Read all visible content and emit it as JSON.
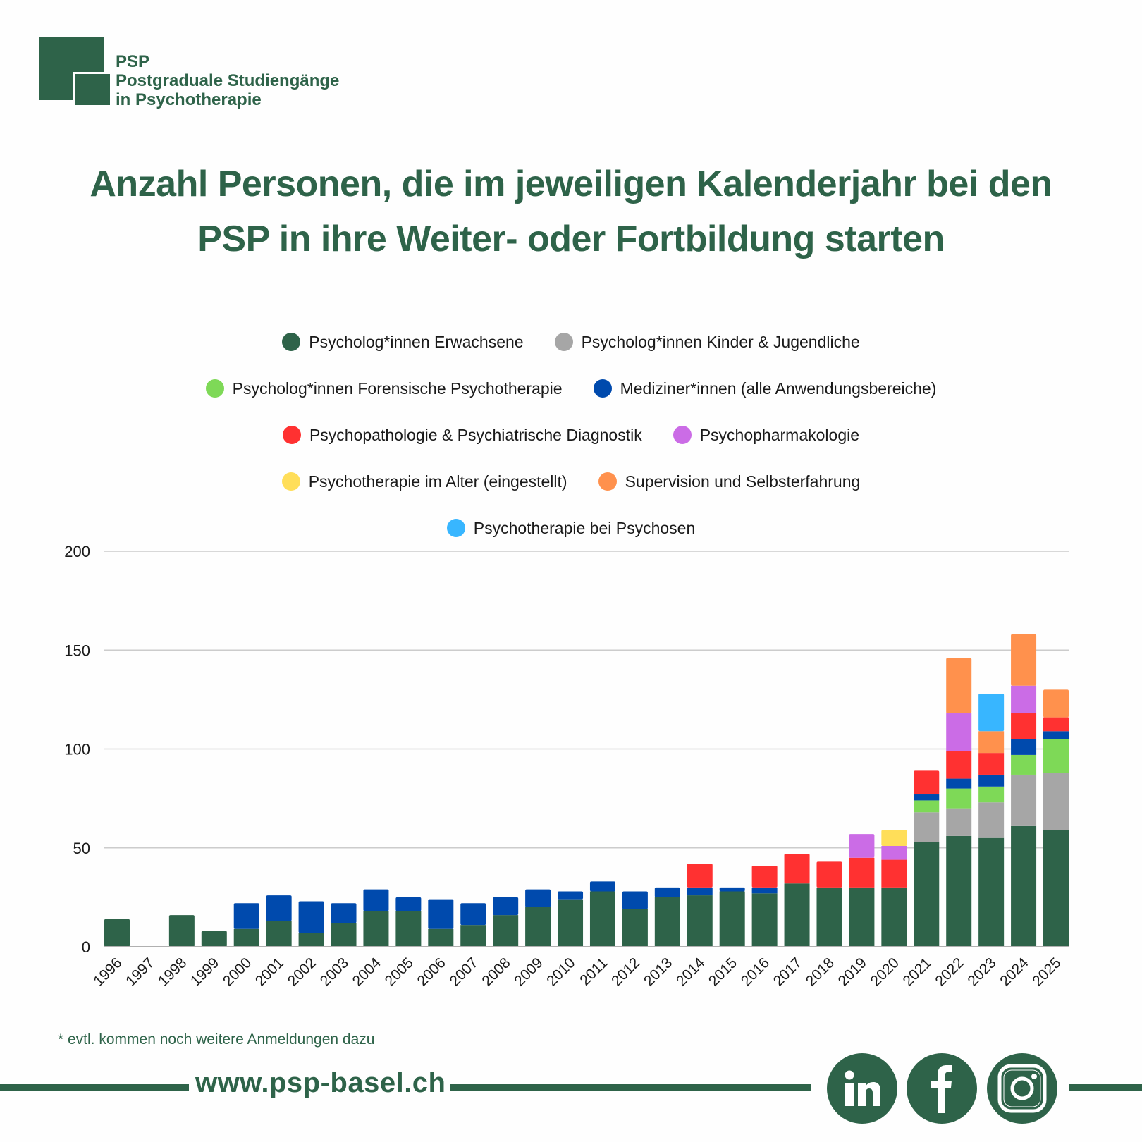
{
  "logo": {
    "line1": "PSP",
    "line2": "Postgraduale Studiengänge",
    "line3": "in Psychotherapie"
  },
  "title": {
    "line1": "Anzahl Personen, die im jeweiligen Kalenderjahr bei den",
    "line2": "PSP in ihre Weiter- oder Fortbildung starten"
  },
  "footnote": "* evtl. kommen noch weitere Anmeldungen dazu",
  "footer": {
    "url": "www.psp-basel.ch",
    "social": [
      {
        "name": "linkedin",
        "icon": "linkedin-icon"
      },
      {
        "name": "facebook",
        "icon": "facebook-icon"
      },
      {
        "name": "instagram",
        "icon": "instagram-icon"
      }
    ]
  },
  "colors": {
    "brand": "#2e6349",
    "grid": "#cccccc"
  },
  "chart_data": {
    "type": "bar",
    "stacked": true,
    "title": "Anzahl Personen, die im jeweiligen Kalenderjahr bei den PSP in ihre Weiter- oder Fortbildung starten",
    "xlabel": "",
    "ylabel": "",
    "ylim": [
      0,
      200
    ],
    "yticks": [
      0,
      50,
      100,
      150,
      200
    ],
    "grid": true,
    "legend_position": "top-center",
    "categories": [
      "1996",
      "1997",
      "1998",
      "1999",
      "2000",
      "2001",
      "2002",
      "2003",
      "2004",
      "2005",
      "2006",
      "2007",
      "2008",
      "2009",
      "2010",
      "2011",
      "2012",
      "2013",
      "2014",
      "2015",
      "2016",
      "2017",
      "2018",
      "2019",
      "2020",
      "2021",
      "2022",
      "2023",
      "2024",
      "2025"
    ],
    "series": [
      {
        "name": "Psycholog*innen Erwachsene",
        "color": "#2e6349",
        "values": [
          14,
          0,
          16,
          8,
          9,
          13,
          7,
          12,
          18,
          18,
          9,
          11,
          16,
          20,
          24,
          28,
          19,
          25,
          26,
          28,
          27,
          32,
          30,
          30,
          30,
          53,
          56,
          55,
          61,
          59
        ]
      },
      {
        "name": "Psycholog*innen Kinder & Jugendliche",
        "color": "#a6a6a6",
        "values": [
          0,
          0,
          0,
          0,
          0,
          0,
          0,
          0,
          0,
          0,
          0,
          0,
          0,
          0,
          0,
          0,
          0,
          0,
          0,
          0,
          0,
          0,
          0,
          0,
          0,
          15,
          14,
          18,
          26,
          29
        ]
      },
      {
        "name": "Psycholog*innen Forensische Psychotherapie",
        "color": "#7ed957",
        "values": [
          0,
          0,
          0,
          0,
          0,
          0,
          0,
          0,
          0,
          0,
          0,
          0,
          0,
          0,
          0,
          0,
          0,
          0,
          0,
          0,
          0,
          0,
          0,
          0,
          0,
          6,
          10,
          8,
          10,
          17
        ]
      },
      {
        "name": "Mediziner*innen (alle Anwendungsbereiche)",
        "color": "#004aad",
        "values": [
          0,
          0,
          0,
          0,
          13,
          13,
          16,
          10,
          11,
          7,
          15,
          11,
          9,
          9,
          4,
          5,
          9,
          5,
          4,
          2,
          3,
          0,
          0,
          0,
          0,
          3,
          5,
          6,
          8,
          4
        ]
      },
      {
        "name": "Psychopathologie & Psychiatrische Diagnostik",
        "color": "#ff3131",
        "values": [
          0,
          0,
          0,
          0,
          0,
          0,
          0,
          0,
          0,
          0,
          0,
          0,
          0,
          0,
          0,
          0,
          0,
          0,
          12,
          0,
          11,
          15,
          13,
          15,
          14,
          12,
          14,
          11,
          13,
          7
        ]
      },
      {
        "name": "Psychopharmakologie",
        "color": "#cb6ce6",
        "values": [
          0,
          0,
          0,
          0,
          0,
          0,
          0,
          0,
          0,
          0,
          0,
          0,
          0,
          0,
          0,
          0,
          0,
          0,
          0,
          0,
          0,
          0,
          0,
          12,
          7,
          0,
          19,
          0,
          14,
          0
        ]
      },
      {
        "name": "Psychotherapie im Alter (eingestellt)",
        "color": "#ffde59",
        "values": [
          0,
          0,
          0,
          0,
          0,
          0,
          0,
          0,
          0,
          0,
          0,
          0,
          0,
          0,
          0,
          0,
          0,
          0,
          0,
          0,
          0,
          0,
          0,
          0,
          8,
          0,
          0,
          0,
          0,
          0
        ]
      },
      {
        "name": "Supervision und Selbsterfahrung",
        "color": "#ff914d",
        "values": [
          0,
          0,
          0,
          0,
          0,
          0,
          0,
          0,
          0,
          0,
          0,
          0,
          0,
          0,
          0,
          0,
          0,
          0,
          0,
          0,
          0,
          0,
          0,
          0,
          0,
          0,
          28,
          11,
          26,
          14
        ]
      },
      {
        "name": "Psychotherapie bei Psychosen",
        "color": "#38b6ff",
        "values": [
          0,
          0,
          0,
          0,
          0,
          0,
          0,
          0,
          0,
          0,
          0,
          0,
          0,
          0,
          0,
          0,
          0,
          0,
          0,
          0,
          0,
          0,
          0,
          0,
          0,
          0,
          0,
          19,
          0,
          0
        ]
      }
    ],
    "legend_rows": [
      [
        0,
        1
      ],
      [
        2,
        3
      ],
      [
        4,
        5
      ],
      [
        6,
        7
      ],
      [
        8
      ]
    ]
  }
}
